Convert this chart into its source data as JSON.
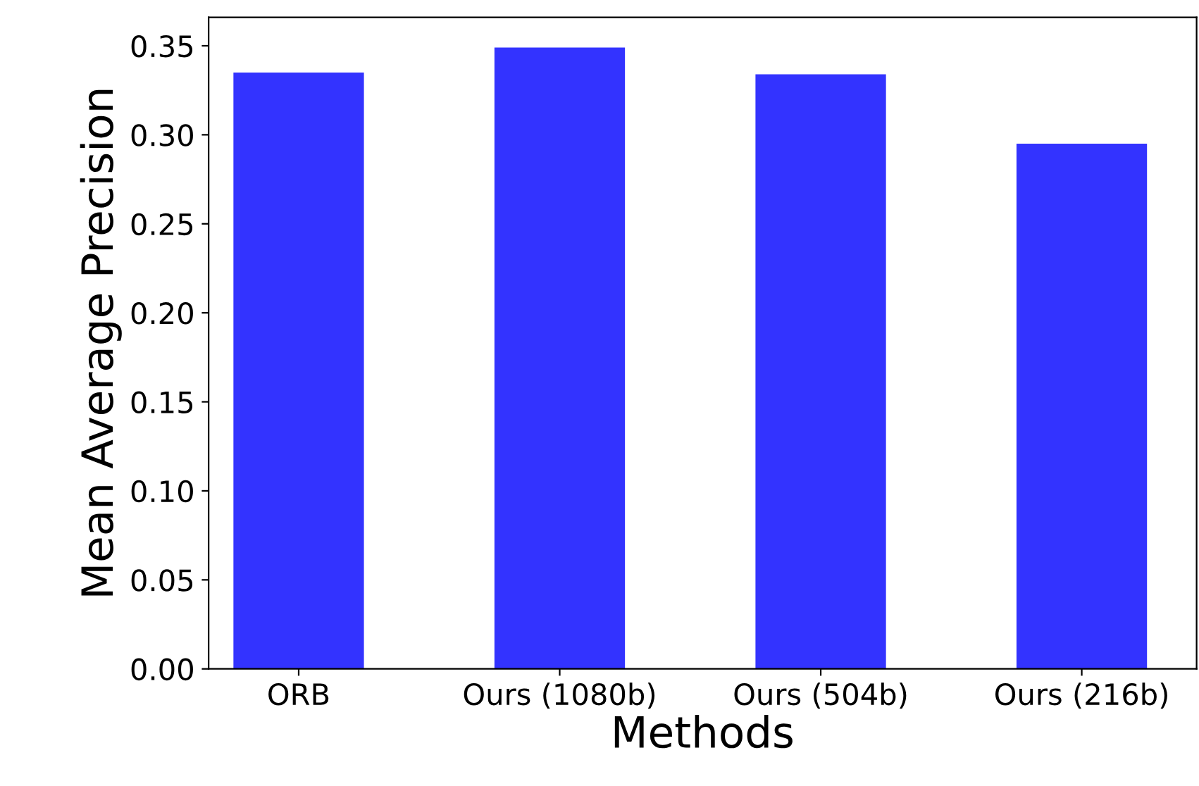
{
  "chart_data": {
    "type": "bar",
    "xlabel": "Methods",
    "ylabel": "Mean Average Precision",
    "categories": [
      "ORB",
      "Ours (1080b)",
      "Ours (504b)",
      "Ours (216b)"
    ],
    "values": [
      0.335,
      0.349,
      0.334,
      0.295
    ],
    "color": "#3333ff",
    "ylim": [
      0,
      0.366
    ],
    "yticks": [
      {
        "value": 0,
        "label": "0.00"
      },
      {
        "value": 0.05,
        "label": "0.05"
      },
      {
        "value": 0.1,
        "label": "0.10"
      },
      {
        "value": 0.15,
        "label": "0.15"
      },
      {
        "value": 0.2,
        "label": "0.20"
      },
      {
        "value": 0.25,
        "label": "0.25"
      },
      {
        "value": 0.3,
        "label": "0.30"
      },
      {
        "value": 0.35,
        "label": "0.35"
      }
    ],
    "grid": false
  }
}
